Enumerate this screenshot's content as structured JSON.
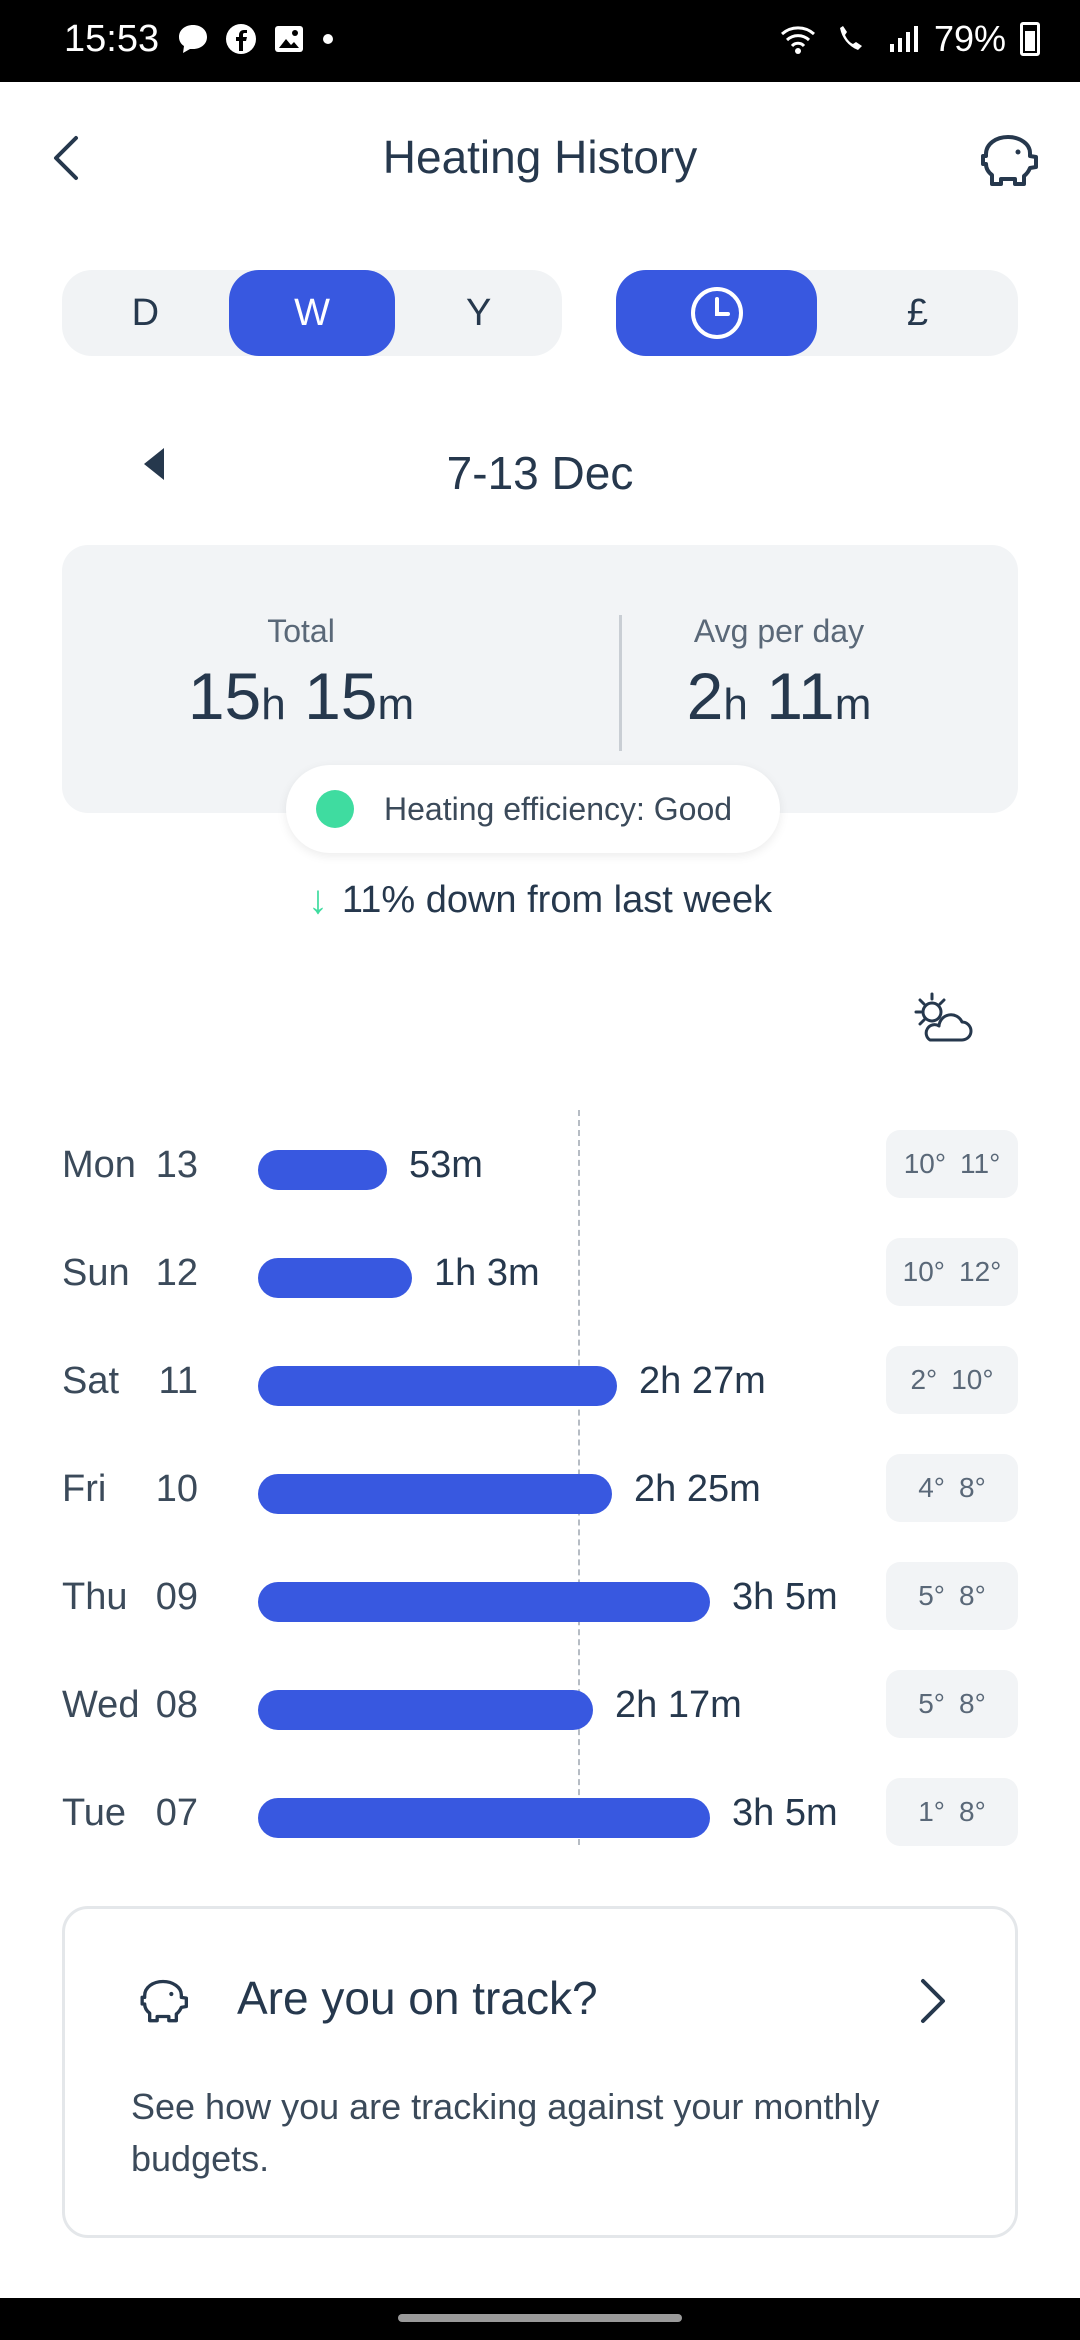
{
  "status_bar": {
    "time": "15:53",
    "battery": "79%"
  },
  "header": {
    "title": "Heating History"
  },
  "period_selector": {
    "options": [
      "D",
      "W",
      "Y"
    ],
    "selected": "W"
  },
  "mode_selector": {
    "time_icon": "clock-icon",
    "currency_label": "£",
    "selected": "time"
  },
  "date_nav": {
    "label": "7-13 Dec"
  },
  "summary": {
    "total_label": "Total",
    "total_hours": "15",
    "total_h_unit": "h",
    "total_minutes": "15",
    "total_m_unit": "m",
    "avg_label": "Avg per day",
    "avg_hours": "2",
    "avg_h_unit": "h",
    "avg_minutes": "11",
    "avg_m_unit": "m"
  },
  "efficiency": {
    "text": "Heating efficiency: Good",
    "color": "#3fdca0"
  },
  "trend": {
    "text": "11% down from last week"
  },
  "chart_data": {
    "type": "bar",
    "orientation": "horizontal",
    "categories": [
      "Mon 13",
      "Sun 12",
      "Sat 11",
      "Fri 10",
      "Thu 09",
      "Wed 08",
      "Tue 07"
    ],
    "series": [
      {
        "values": [
          53,
          63,
          147,
          145,
          185,
          137,
          185
        ]
      }
    ],
    "average": 131,
    "xlim": [
      0,
      185
    ],
    "bar_color": "#3858e0",
    "rows": [
      {
        "day": "Mon",
        "num": "13",
        "label": "53m",
        "minutes": 53,
        "low": "10°",
        "high": "11°"
      },
      {
        "day": "Sun",
        "num": "12",
        "label": "1h 3m",
        "minutes": 63,
        "low": "10°",
        "high": "12°"
      },
      {
        "day": "Sat",
        "num": "11",
        "label": "2h 27m",
        "minutes": 147,
        "low": "2°",
        "high": "10°"
      },
      {
        "day": "Fri",
        "num": "10",
        "label": "2h 25m",
        "minutes": 145,
        "low": "4°",
        "high": "8°"
      },
      {
        "day": "Thu",
        "num": "09",
        "label": "3h 5m",
        "minutes": 185,
        "low": "5°",
        "high": "8°"
      },
      {
        "day": "Wed",
        "num": "08",
        "label": "2h 17m",
        "minutes": 137,
        "low": "5°",
        "high": "8°"
      },
      {
        "day": "Tue",
        "num": "07",
        "label": "3h 5m",
        "minutes": 185,
        "low": "1°",
        "high": "8°"
      }
    ]
  },
  "track_card": {
    "title": "Are you on track?",
    "description": "See how you are tracking against your monthly budgets."
  },
  "colors": {
    "accent": "#3858e0",
    "text": "#26384d"
  }
}
